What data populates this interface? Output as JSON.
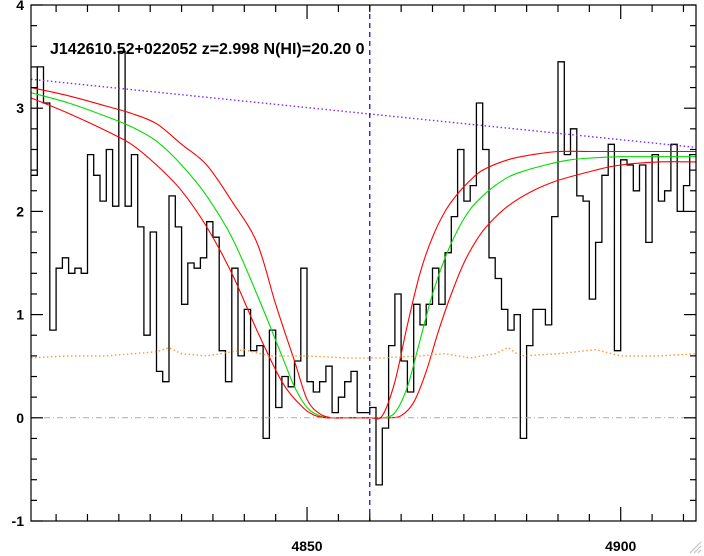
{
  "chart_data": {
    "type": "line",
    "title": "J142610.52+022052 z=2.998 N(HI)=20.20 0",
    "xlabel": "",
    "ylabel": "",
    "xlim": [
      4806,
      4912
    ],
    "ylim": [
      -1,
      4
    ],
    "x_ticks": [
      4850,
      4900
    ],
    "y_ticks": [
      -1,
      0,
      1,
      2,
      3,
      4
    ],
    "x_minor_step": 5,
    "y_minor_step": 0.2,
    "grid": false,
    "legend": "none",
    "series": [
      {
        "style": "step",
        "color": "#000000",
        "x": [
          4806,
          4807,
          4808,
          4809,
          4810,
          4811,
          4812,
          4813,
          4814,
          4815,
          4816,
          4817,
          4818,
          4819,
          4820,
          4821,
          4822,
          4823,
          4824,
          4825,
          4826,
          4827,
          4828,
          4829,
          4830,
          4831,
          4832,
          4833,
          4834,
          4835,
          4836,
          4837,
          4838,
          4839,
          4840,
          4841,
          4842,
          4843,
          4844,
          4845,
          4846,
          4847,
          4848,
          4849,
          4850,
          4851,
          4852,
          4853,
          4854,
          4855,
          4856,
          4857,
          4858,
          4859,
          4860,
          4861,
          4862,
          4863,
          4864,
          4865,
          4866,
          4867,
          4868,
          4869,
          4870,
          4871,
          4872,
          4873,
          4874,
          4875,
          4876,
          4877,
          4878,
          4879,
          4880,
          4881,
          4882,
          4883,
          4884,
          4885,
          4886,
          4887,
          4888,
          4889,
          4890,
          4891,
          4892,
          4893,
          4894,
          4895,
          4896,
          4897,
          4898,
          4899,
          4900,
          4901,
          4902,
          4903,
          4904,
          4905,
          4906,
          4907,
          4908,
          4909,
          4910,
          4911
        ],
        "y": [
          2.35,
          3.4,
          3.05,
          0.85,
          1.45,
          1.55,
          1.4,
          1.45,
          1.4,
          2.55,
          2.35,
          2.1,
          2.6,
          2.05,
          3.55,
          2.05,
          2.55,
          1.85,
          0.8,
          1.8,
          0.45,
          0.35,
          2.15,
          1.85,
          1.1,
          1.5,
          1.45,
          1.55,
          1.9,
          1.75,
          0.65,
          0.35,
          1.45,
          0.6,
          1.05,
          0.65,
          0.7,
          -0.2,
          0.85,
          0.1,
          0.4,
          0.3,
          0.55,
          1.45,
          0.35,
          0.25,
          0.35,
          0.5,
          0.05,
          0.2,
          0.35,
          0.45,
          0.05,
          0.05,
          0.1,
          -0.65,
          -0.1,
          0.7,
          1.2,
          0.55,
          0.25,
          1.1,
          0.9,
          1.1,
          1.45,
          1.1,
          1.6,
          1.95,
          2.6,
          2.1,
          2.25,
          3.05,
          2.6,
          1.55,
          1.35,
          1.05,
          0.85,
          1.0,
          -0.2,
          0.7,
          1.05,
          1.05,
          0.9,
          1.95,
          3.45,
          2.55,
          2.8,
          2.15,
          2.1,
          1.15,
          1.7,
          2.35,
          2.65,
          0.65,
          2.5,
          2.45,
          2.2,
          2.45,
          1.7,
          2.55,
          2.1,
          2.2,
          2.65,
          2.0,
          2.25,
          2.55
        ]
      },
      {
        "style": "smooth",
        "color": "#00dd00",
        "x": [
          4806,
          4812,
          4818,
          4822,
          4826,
          4830,
          4834,
          4838,
          4842,
          4846,
          4848,
          4850,
          4852,
          4854,
          4856,
          4858,
          4860,
          4862,
          4864,
          4866,
          4868,
          4870,
          4872,
          4874,
          4876,
          4878,
          4880,
          4882,
          4884,
          4888,
          4892,
          4896,
          4900,
          4904,
          4908,
          4912
        ],
        "y": [
          3.15,
          3.05,
          2.92,
          2.82,
          2.68,
          2.45,
          2.15,
          1.75,
          1.2,
          0.6,
          0.3,
          0.1,
          0.02,
          0.0,
          0.0,
          0.0,
          0.0,
          0.0,
          0.05,
          0.3,
          0.75,
          1.2,
          1.55,
          1.82,
          2.02,
          2.15,
          2.25,
          2.33,
          2.38,
          2.45,
          2.5,
          2.52,
          2.53,
          2.53,
          2.53,
          2.53
        ]
      },
      {
        "style": "smooth",
        "color": "#ff0000",
        "x": [
          4806,
          4812,
          4818,
          4822,
          4826,
          4830,
          4834,
          4838,
          4842,
          4845,
          4848,
          4850,
          4852,
          4854,
          4856,
          4858,
          4860,
          4862,
          4864,
          4866,
          4868,
          4870,
          4872,
          4874,
          4876,
          4878,
          4882,
          4886,
          4890,
          4896,
          4900,
          4906,
          4912
        ],
        "y": [
          3.2,
          3.12,
          3.02,
          2.95,
          2.85,
          2.65,
          2.45,
          2.1,
          1.7,
          1.1,
          0.55,
          0.18,
          0.04,
          0.0,
          0.0,
          0.0,
          0.0,
          0.02,
          0.35,
          0.9,
          1.4,
          1.75,
          2.0,
          2.17,
          2.3,
          2.4,
          2.5,
          2.55,
          2.58,
          2.58,
          2.58,
          2.58,
          2.58
        ]
      },
      {
        "style": "smooth",
        "color": "#ff0000",
        "x": [
          4806,
          4812,
          4818,
          4822,
          4826,
          4830,
          4834,
          4838,
          4842,
          4846,
          4849,
          4851,
          4853,
          4855,
          4857,
          4859,
          4861,
          4863,
          4865,
          4867,
          4869,
          4871,
          4873,
          4875,
          4877,
          4879,
          4882,
          4886,
          4890,
          4896,
          4900,
          4906,
          4912
        ],
        "y": [
          3.1,
          2.95,
          2.78,
          2.65,
          2.45,
          2.2,
          1.85,
          1.4,
          0.85,
          0.35,
          0.12,
          0.03,
          0.0,
          0.0,
          0.0,
          0.0,
          0.0,
          0.0,
          0.02,
          0.15,
          0.45,
          0.85,
          1.2,
          1.5,
          1.72,
          1.88,
          2.05,
          2.2,
          2.3,
          2.4,
          2.45,
          2.48,
          2.48
        ]
      },
      {
        "style": "dotted",
        "color": "#7b2cff",
        "x": [
          4806,
          4912
        ],
        "y": [
          3.28,
          2.62
        ]
      },
      {
        "style": "dotted",
        "color": "#ff9933",
        "x": [
          4806,
          4812,
          4818,
          4822,
          4826,
          4828,
          4830,
          4834,
          4840,
          4844,
          4850,
          4856,
          4862,
          4868,
          4872,
          4876,
          4880,
          4882,
          4884,
          4890,
          4896,
          4900,
          4906,
          4912
        ],
        "y": [
          0.58,
          0.6,
          0.6,
          0.62,
          0.64,
          0.68,
          0.62,
          0.6,
          0.66,
          0.6,
          0.6,
          0.58,
          0.58,
          0.6,
          0.62,
          0.58,
          0.62,
          0.68,
          0.6,
          0.62,
          0.66,
          0.6,
          0.6,
          0.62
        ]
      }
    ],
    "reference_lines": [
      {
        "orientation": "horizontal",
        "value": 0,
        "style": "dash-dot",
        "color": "#aaaaaa"
      },
      {
        "orientation": "vertical",
        "value": 4860,
        "style": "dashed",
        "color": "#0000cc"
      }
    ]
  }
}
